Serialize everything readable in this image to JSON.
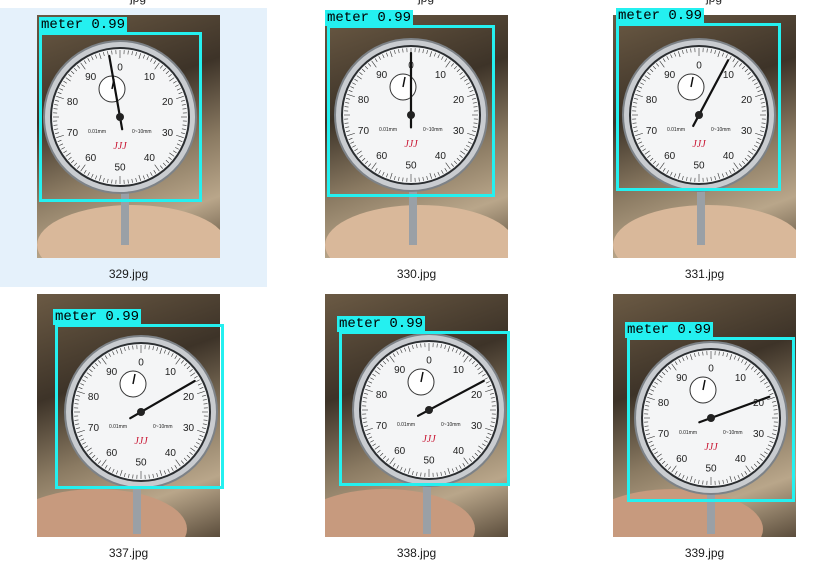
{
  "top_partial_labels": [
    "jpg",
    "jpg",
    "jpg"
  ],
  "items": [
    {
      "filename": "329.jpg",
      "selected": true,
      "label": "meter 0.99"
    },
    {
      "filename": "330.jpg",
      "selected": false,
      "label": "meter 0.99"
    },
    {
      "filename": "331.jpg",
      "selected": false,
      "label": "meter 0.99"
    },
    {
      "filename": "337.jpg",
      "selected": false,
      "label": "meter 0.99"
    },
    {
      "filename": "338.jpg",
      "selected": false,
      "label": "meter 0.99"
    },
    {
      "filename": "339.jpg",
      "selected": false,
      "label": "meter 0.99"
    }
  ],
  "dial": {
    "numbers": [
      "0",
      "10",
      "20",
      "30",
      "40",
      "50",
      "60",
      "70",
      "80",
      "90"
    ],
    "center_text_left": "0.01mm",
    "center_text_right": "0~10mm",
    "brand": "JJJ"
  },
  "colors": {
    "box": "#24f0f0",
    "selected_bg": "#e5f1fb"
  }
}
